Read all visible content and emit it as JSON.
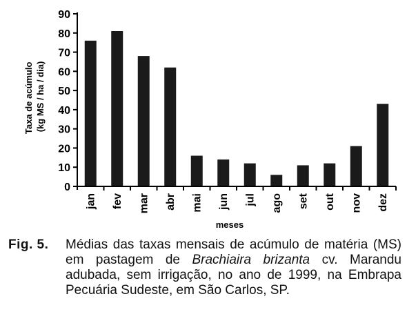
{
  "chart_data": {
    "type": "bar",
    "categories": [
      "jan",
      "fev",
      "mar",
      "abr",
      "mai",
      "jun",
      "jul",
      "ago",
      "set",
      "out",
      "nov",
      "dez"
    ],
    "values": [
      76,
      81,
      68,
      62,
      16,
      14,
      12,
      6,
      11,
      12,
      21,
      43
    ],
    "ylim": [
      0,
      90
    ],
    "yticks": [
      0,
      10,
      20,
      30,
      40,
      50,
      60,
      70,
      80,
      90
    ],
    "xlabel": "meses",
    "ylabel_line1": "Taxa de acúmulo",
    "ylabel_line2": "(kg MS / ha / dia)",
    "bar_color": "#1a1a1a",
    "grid": false
  },
  "caption": {
    "label": "Fig. 5.",
    "text_before_italic": "Médias das taxas mensais de acúmulo de matéria (MS) em pastagem de ",
    "italic": "Brachiaira brizanta",
    "text_after_italic": " cv. Marandu adubada, sem irrigação, no ano de 1999, na Embrapa Pecuária Sudeste, em São Carlos, SP."
  }
}
